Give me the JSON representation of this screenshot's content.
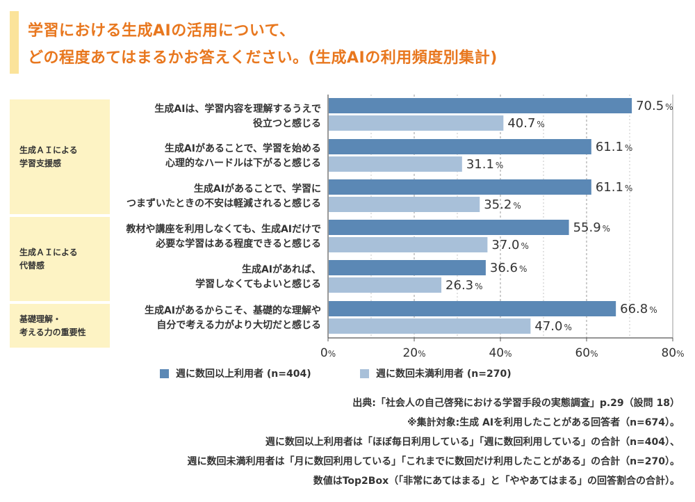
{
  "title": {
    "line1": "学習における生成AIの活用について、",
    "line2": "どの程度あてはまるかお答えください。(生成AIの利用頻度別集計)"
  },
  "groups": [
    {
      "label": "生成ＡＩによる\n学習支援感"
    },
    {
      "label": "生成ＡＩによる\n代替感"
    },
    {
      "label": "基礎理解・\n考える力の重要性"
    }
  ],
  "legend": {
    "series1": "週に数回以上利用者 (n=404)",
    "series2": "週に数回未満利用者 (n=270)"
  },
  "notes": [
    "出典:「社会人の自己啓発における学習手段の実態調査」p.29（設問 18）",
    "※集計対象:生成 AIを利用したことがある回答者（n=674）。",
    "週に数回以上利用者は「ほぼ毎日利用している」「週に数回利用している」の合計（n=404）、",
    "週に数回未満利用者は「月に数回利用している」「これまでに数回だけ利用したことがある」の合計（n=270）。",
    "数値はTop2Box（「非常にあてはまる」と「ややあてはまる」の回答割合の合計）。"
  ],
  "colors": {
    "title": "#e8771e",
    "series1": "#5b88b5",
    "series2": "#a8c0d9",
    "group_bg": "#fdf3c4",
    "accent": "#fbe39a",
    "grid": "#9a9a9a"
  },
  "chart_data": {
    "type": "bar",
    "orientation": "horizontal",
    "categories": [
      "生成AIは、学習内容を理解するうえで\n役立つと感じる",
      "生成AIがあることで、学習を始める\n心理的なハードルは下がると感じる",
      "生成AIがあることで、学習に\nつまずいたときの不安は軽減されると感じる",
      "教材や講座を利用しなくても、生成AIだけで\n必要な学習はある程度できると感じる",
      "生成AIがあれば、\n学習しなくてもよいと感じる",
      "生成AIがあるからこそ、基礎的な理解や\n自分で考える力がより大切だと感じる"
    ],
    "series": [
      {
        "name": "週に数回以上利用者 (n=404)",
        "values": [
          70.5,
          61.1,
          61.1,
          55.9,
          36.6,
          66.8
        ]
      },
      {
        "name": "週に数回未満利用者 (n=270)",
        "values": [
          40.7,
          31.1,
          35.2,
          37.0,
          26.3,
          47.0
        ]
      }
    ],
    "value_labels": [
      [
        "70.5",
        "61.1",
        "61.1",
        "55.9",
        "36.6",
        "66.8"
      ],
      [
        "40.7",
        "31.1",
        "35.2",
        "37.0",
        "26.3",
        "47.0"
      ]
    ],
    "unit": "%",
    "xlim": [
      0,
      80
    ],
    "xticks": [
      0,
      20,
      40,
      60,
      80
    ],
    "grid": true
  }
}
